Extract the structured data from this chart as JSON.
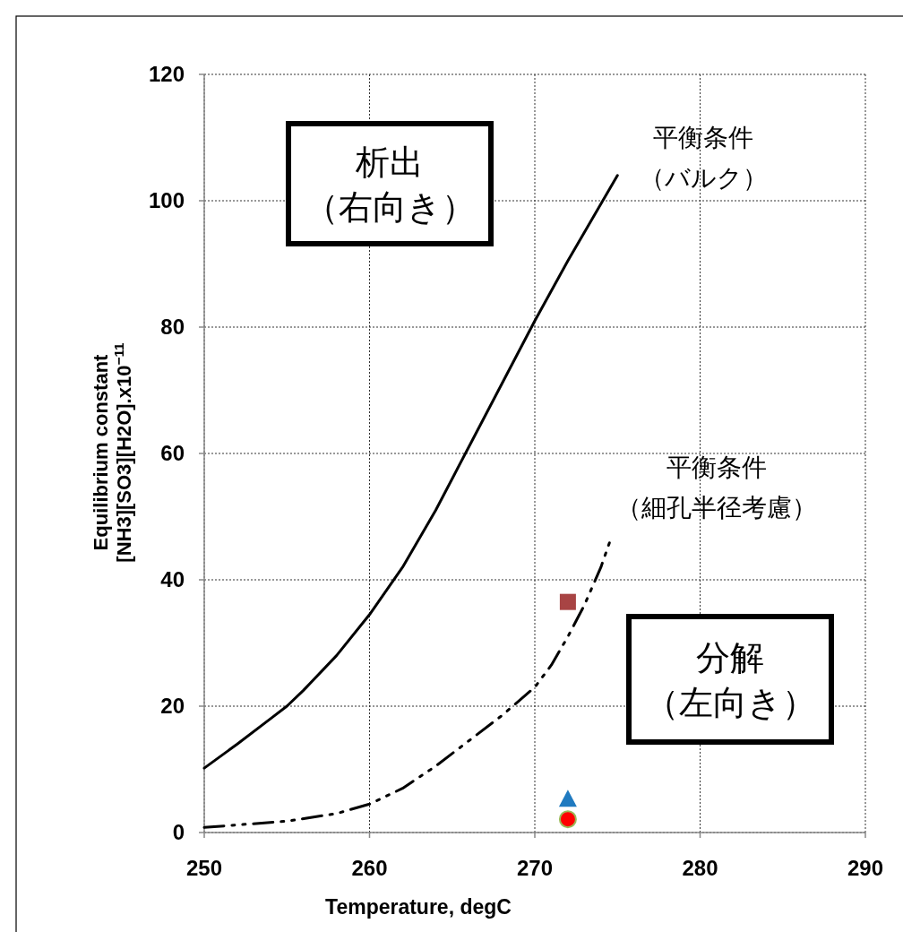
{
  "chart_data": {
    "type": "line",
    "xlabel": "Temperature, degC",
    "ylabel": "Equilibrium constant\n[NH3][SO3][H2O].x10$^{−11}$",
    "xlim": [
      250,
      290
    ],
    "xticks": [
      250,
      260,
      270,
      280,
      290
    ],
    "ylim": [
      0,
      120
    ],
    "yticks": [
      0,
      20,
      40,
      60,
      80,
      100,
      120
    ],
    "grid": true,
    "series": [
      {
        "name": "平衡条件（バルク）",
        "color": "#000000",
        "line_style": "solid",
        "marker": "none",
        "x": [
          250,
          252,
          254,
          255,
          256,
          258,
          260,
          262,
          264,
          266,
          268,
          270,
          272,
          274,
          275
        ],
        "values": [
          10.2,
          14,
          18,
          20,
          22.5,
          28,
          34.5,
          42,
          51,
          61,
          71,
          81,
          90.5,
          99.5,
          104
        ]
      },
      {
        "name": "平衡条件（細孔半径考慮）",
        "color": "#000000",
        "line_style": "dashed",
        "marker": "none",
        "x": [
          250,
          252,
          255,
          258,
          260,
          262,
          264,
          266,
          268,
          270,
          271,
          272,
          273,
          274,
          274.6
        ],
        "values": [
          0.8,
          1.2,
          1.8,
          3,
          4.5,
          7,
          10.5,
          14.5,
          18.5,
          23,
          26.5,
          31,
          36,
          42,
          46.5
        ]
      },
      {
        "type": "scatter",
        "color": "#a84444",
        "marker": "square",
        "x": [
          272
        ],
        "values": [
          36.5
        ]
      },
      {
        "type": "scatter",
        "color": "#1f7ac0",
        "marker": "triangle",
        "x": [
          272
        ],
        "values": [
          5.2
        ]
      },
      {
        "type": "scatter",
        "color": "#ff0000",
        "marker": "circle",
        "x": [
          272
        ],
        "values": [
          2.1
        ]
      }
    ],
    "annotations": [
      "析出（右向き）",
      "分解（左向き）"
    ]
  }
}
